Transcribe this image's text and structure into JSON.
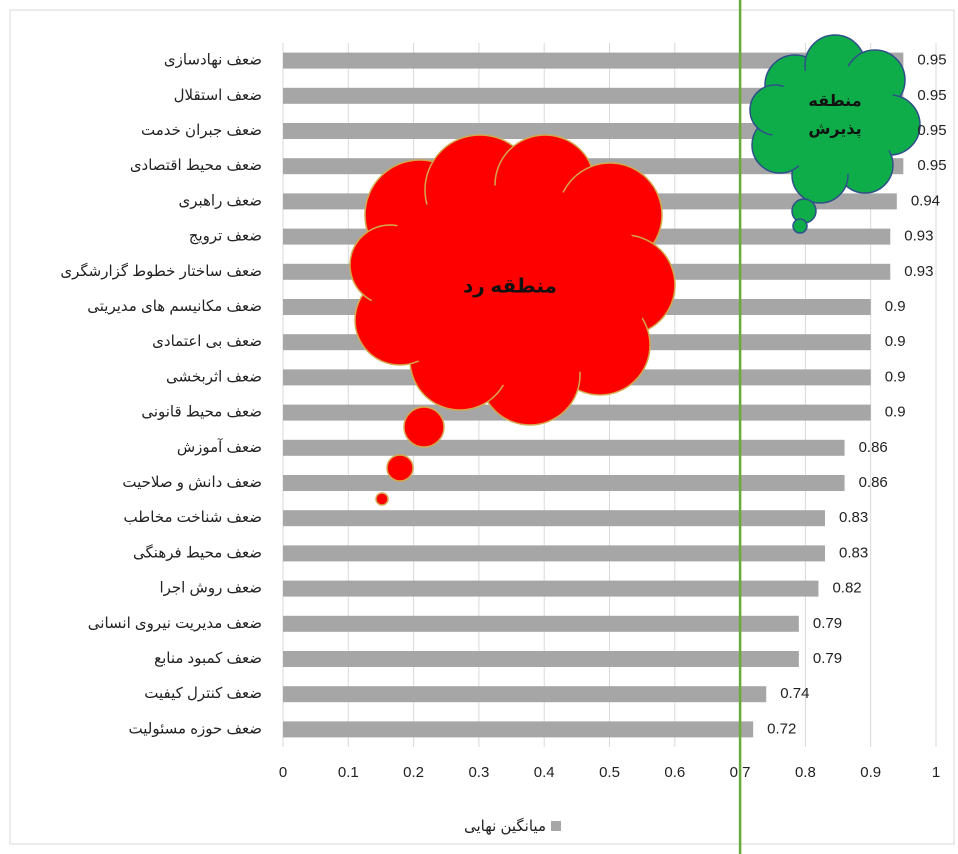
{
  "chart_data": {
    "type": "hbar",
    "categories": [
      "ضعف نهادسازی",
      "ضعف استقلال",
      "ضعف جبران خدمت",
      "ضعف محیط اقتصادی",
      "ضعف راهبری",
      "ضعف ترویج",
      "ضعف ساختار خطوط گزارشگری",
      "ضعف مکانیسم های مدیریتی",
      "ضعف بی اعتمادی",
      "ضعف اثربخشی",
      "ضعف محیط قانونی",
      "ضعف آموزش",
      "ضعف دانش و صلاحیت",
      "ضعف شناخت مخاطب",
      "ضعف محیط فرهنگی",
      "ضعف روش اجرا",
      "ضعف مدیریت نیروی انسانی",
      "ضعف کمبود منابع",
      "ضعف کنترل کیفیت",
      "ضعف حوزه مسئولیت"
    ],
    "series": [
      {
        "name": "میانگین نهایی",
        "color": "#a6a6a6",
        "values": [
          0.95,
          0.95,
          0.95,
          0.95,
          0.94,
          0.93,
          0.93,
          0.9,
          0.9,
          0.9,
          0.9,
          0.86,
          0.86,
          0.83,
          0.83,
          0.82,
          0.79,
          0.79,
          0.74,
          0.72
        ]
      }
    ],
    "xlim": [
      0,
      1
    ],
    "xticks": [
      0,
      0.1,
      0.2,
      0.3,
      0.4,
      0.5,
      0.6,
      0.7,
      0.8,
      0.9,
      1
    ],
    "grid": true,
    "legend": "bottom",
    "threshold": 0.7,
    "threshold_color": "#6aaa3a",
    "annotations": {
      "reject": "منطقه رد",
      "accept": [
        "منطقه",
        "پذیرش"
      ]
    }
  }
}
